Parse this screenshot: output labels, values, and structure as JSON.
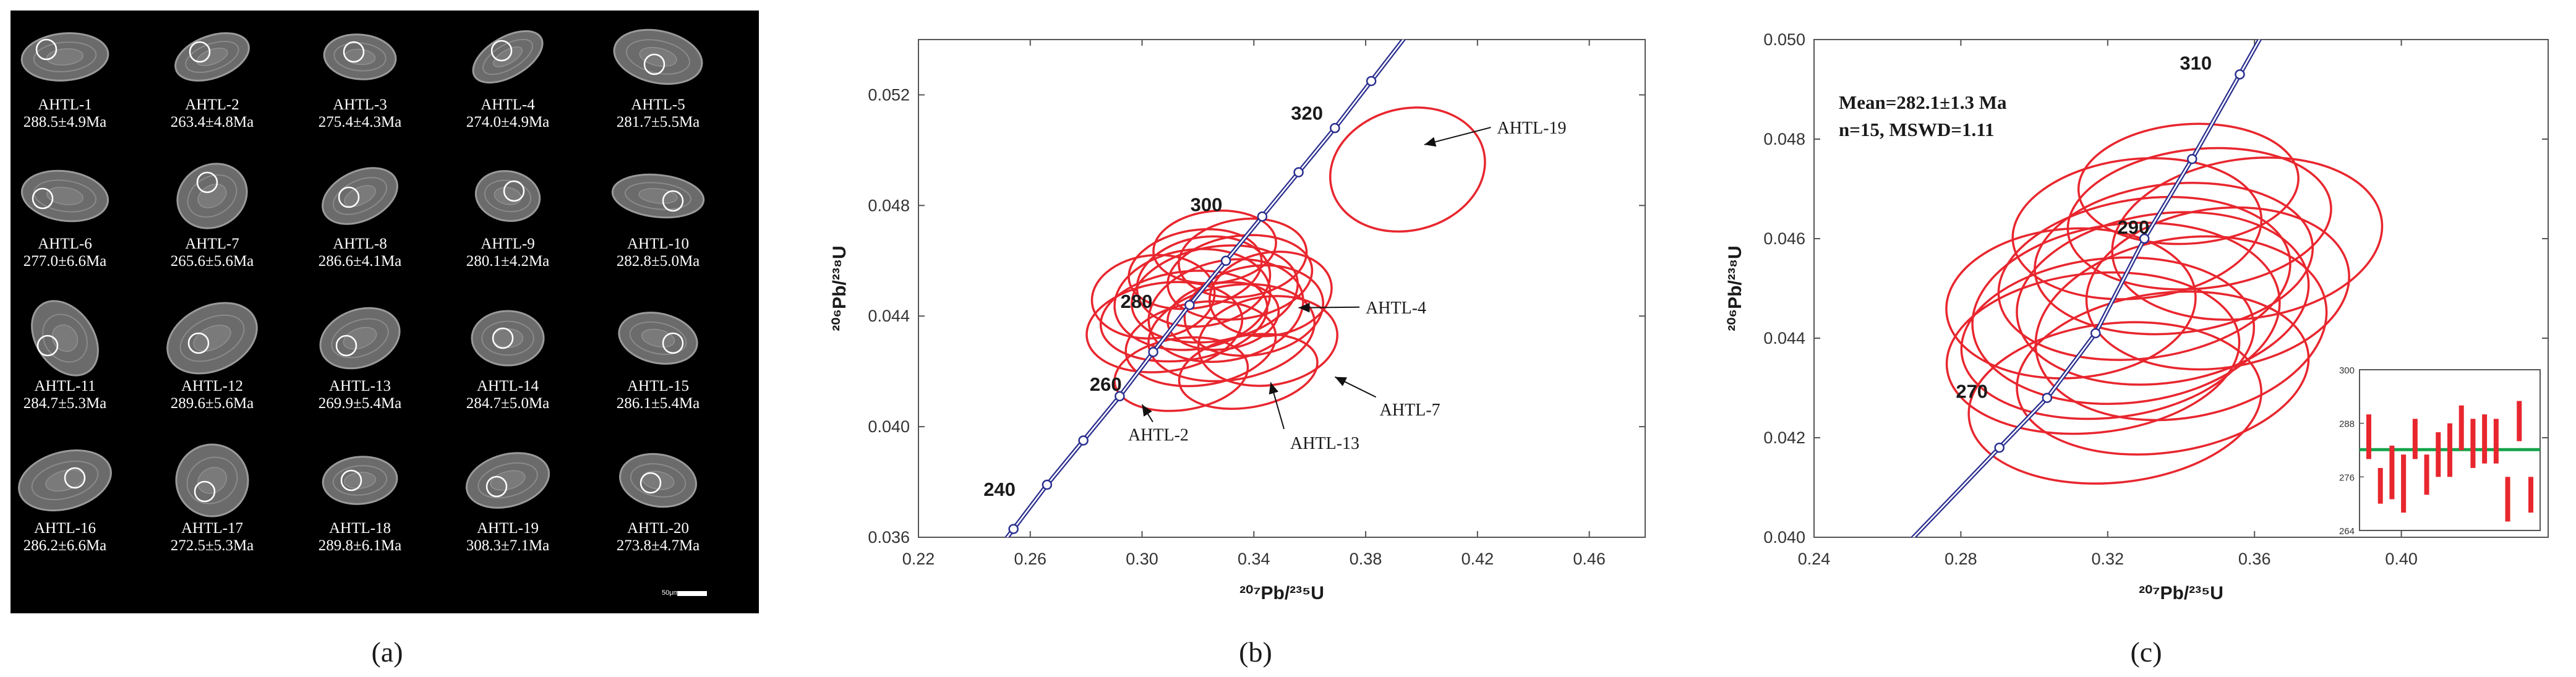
{
  "palette": {
    "ellipse": "#e8262e",
    "concordia": "#2a2f8f",
    "mean_line": "#16a34a",
    "error_bar": "#e8262e",
    "photo_bg": "#000000",
    "text": "#1a1a1a"
  },
  "panel_a": {
    "label": "(a)",
    "scale_bar_label": "50μm",
    "grains": [
      {
        "id": "AHTL-1",
        "age": "288.5±4.9Ma"
      },
      {
        "id": "AHTL-2",
        "age": "263.4±4.8Ma"
      },
      {
        "id": "AHTL-3",
        "age": "275.4±4.3Ma"
      },
      {
        "id": "AHTL-4",
        "age": "274.0±4.9Ma"
      },
      {
        "id": "AHTL-5",
        "age": "281.7±5.5Ma"
      },
      {
        "id": "AHTL-6",
        "age": "277.0±6.6Ma"
      },
      {
        "id": "AHTL-7",
        "age": "265.6±5.6Ma"
      },
      {
        "id": "AHTL-8",
        "age": "286.6±4.1Ma"
      },
      {
        "id": "AHTL-9",
        "age": "280.1±4.2Ma"
      },
      {
        "id": "AHTL-10",
        "age": "282.8±5.0Ma"
      },
      {
        "id": "AHTL-11",
        "age": "284.7±5.3Ma"
      },
      {
        "id": "AHTL-12",
        "age": "289.6±5.6Ma"
      },
      {
        "id": "AHTL-13",
        "age": "269.9±5.4Ma"
      },
      {
        "id": "AHTL-14",
        "age": "284.7±5.0Ma"
      },
      {
        "id": "AHTL-15",
        "age": "286.1±5.4Ma"
      },
      {
        "id": "AHTL-16",
        "age": "286.2±6.6Ma"
      },
      {
        "id": "AHTL-17",
        "age": "272.5±5.3Ma"
      },
      {
        "id": "AHTL-18",
        "age": "289.8±6.1Ma"
      },
      {
        "id": "AHTL-19",
        "age": "308.3±7.1Ma"
      },
      {
        "id": "AHTL-20",
        "age": "273.8±4.7Ma"
      }
    ]
  },
  "chart_data": [
    {
      "type": "scatter",
      "panel": "(b)",
      "xlabel": "²⁰⁷Pb/²³⁵U",
      "ylabel": "²⁰⁶Pb/²³⁸U",
      "xlim": [
        0.22,
        0.48
      ],
      "ylim": [
        0.036,
        0.054
      ],
      "xticks": [
        "0.22",
        "0.26",
        "0.30",
        "0.34",
        "0.38",
        "0.42",
        "0.46"
      ],
      "yticks": [
        "0.036",
        "0.040",
        "0.044",
        "0.048",
        "0.052"
      ],
      "concordia_ages": [
        "240",
        "260",
        "280",
        "300",
        "320"
      ],
      "concordia_points": [
        {
          "x": 0.254,
          "y": 0.0363
        },
        {
          "x": 0.266,
          "y": 0.0379
        },
        {
          "x": 0.279,
          "y": 0.0395
        },
        {
          "x": 0.292,
          "y": 0.0411
        },
        {
          "x": 0.304,
          "y": 0.0427
        },
        {
          "x": 0.317,
          "y": 0.0444
        },
        {
          "x": 0.33,
          "y": 0.046
        },
        {
          "x": 0.343,
          "y": 0.0476
        },
        {
          "x": 0.356,
          "y": 0.0492
        },
        {
          "x": 0.369,
          "y": 0.0508
        },
        {
          "x": 0.382,
          "y": 0.0525
        }
      ],
      "age_labels": [
        {
          "text": "240",
          "x": 0.249,
          "y": 0.0375
        },
        {
          "text": "260",
          "x": 0.287,
          "y": 0.0413
        },
        {
          "text": "280",
          "x": 0.298,
          "y": 0.0443
        },
        {
          "text": "300",
          "x": 0.323,
          "y": 0.0478
        },
        {
          "text": "320",
          "x": 0.359,
          "y": 0.0511
        }
      ],
      "ellipses": [
        {
          "cx": 0.322,
          "cy": 0.04525,
          "rx": 0.024,
          "ry": 0.0016,
          "rot": -10
        },
        {
          "cx": 0.318,
          "cy": 0.0446,
          "rx": 0.028,
          "ry": 0.0018,
          "rot": -8
        },
        {
          "cx": 0.326,
          "cy": 0.0448,
          "rx": 0.03,
          "ry": 0.0017,
          "rot": -10
        },
        {
          "cx": 0.335,
          "cy": 0.0454,
          "rx": 0.026,
          "ry": 0.0015,
          "rot": -8
        },
        {
          "cx": 0.315,
          "cy": 0.044,
          "rx": 0.03,
          "ry": 0.0016,
          "rot": -8
        },
        {
          "cx": 0.33,
          "cy": 0.0442,
          "rx": 0.028,
          "ry": 0.0018,
          "rot": -12
        },
        {
          "cx": 0.34,
          "cy": 0.0442,
          "rx": 0.025,
          "ry": 0.0016,
          "rot": -10
        },
        {
          "cx": 0.308,
          "cy": 0.0436,
          "rx": 0.028,
          "ry": 0.0016,
          "rot": -8
        },
        {
          "cx": 0.321,
          "cy": 0.043,
          "rx": 0.027,
          "ry": 0.0015,
          "rot": -8
        },
        {
          "cx": 0.332,
          "cy": 0.0434,
          "rx": 0.03,
          "ry": 0.0017,
          "rot": -10
        },
        {
          "cx": 0.345,
          "cy": 0.0431,
          "rx": 0.025,
          "ry": 0.0016,
          "rot": -8
        },
        {
          "cx": 0.319,
          "cy": 0.0457,
          "rx": 0.024,
          "ry": 0.0014,
          "rot": -10
        },
        {
          "cx": 0.336,
          "cy": 0.0461,
          "rx": 0.023,
          "ry": 0.0014,
          "rot": -8
        },
        {
          "cx": 0.314,
          "cy": 0.0419,
          "rx": 0.024,
          "ry": 0.0013,
          "rot": -8
        },
        {
          "cx": 0.338,
          "cy": 0.042,
          "rx": 0.025,
          "ry": 0.0013,
          "rot": -10
        },
        {
          "cx": 0.326,
          "cy": 0.0465,
          "rx": 0.022,
          "ry": 0.0013,
          "rot": -6
        },
        {
          "cx": 0.346,
          "cy": 0.0448,
          "rx": 0.022,
          "ry": 0.0015,
          "rot": -10
        },
        {
          "cx": 0.304,
          "cy": 0.0447,
          "rx": 0.022,
          "ry": 0.0015,
          "rot": -6
        },
        {
          "cx": 0.395,
          "cy": 0.0493,
          "rx": 0.028,
          "ry": 0.0022,
          "rot": -14
        },
        {
          "cx": 0.329,
          "cy": 0.044,
          "rx": 0.02,
          "ry": 0.0012,
          "rot": -8
        }
      ],
      "annotations": [
        {
          "text": "AHTL-19",
          "x": 0.427,
          "y": 0.0506,
          "ax": 0.401,
          "ay": 0.0502
        },
        {
          "text": "AHTL-4",
          "x": 0.38,
          "y": 0.0441,
          "ax": 0.356,
          "ay": 0.0443
        },
        {
          "text": "AHTL-7",
          "x": 0.385,
          "y": 0.0404,
          "ax": 0.369,
          "ay": 0.0418
        },
        {
          "text": "AHTL-13",
          "x": 0.353,
          "y": 0.0392,
          "ax": 0.346,
          "ay": 0.0416
        },
        {
          "text": "AHTL-2",
          "x": 0.295,
          "y": 0.0395,
          "ax": 0.3,
          "ay": 0.0408
        }
      ]
    },
    {
      "type": "scatter",
      "panel": "(c)",
      "xlabel": "²⁰⁷Pb/²³⁵U",
      "ylabel": "²⁰⁶Pb/²³⁸U",
      "xlim": [
        0.24,
        0.44
      ],
      "ylim": [
        0.04,
        0.05
      ],
      "xticks": [
        "0.24",
        "0.28",
        "0.32",
        "0.36",
        "0.40"
      ],
      "yticks": [
        "0.040",
        "0.042",
        "0.044",
        "0.046",
        "0.048",
        "0.050"
      ],
      "concordia_ages": [
        "270",
        "290",
        "310"
      ],
      "concordia_points": [
        {
          "x": 0.2905,
          "y": 0.0418
        },
        {
          "x": 0.3035,
          "y": 0.0428
        },
        {
          "x": 0.3167,
          "y": 0.0441
        },
        {
          "x": 0.33,
          "y": 0.046
        },
        {
          "x": 0.343,
          "y": 0.0476
        },
        {
          "x": 0.356,
          "y": 0.0493
        }
      ],
      "age_labels": [
        {
          "text": "270",
          "x": 0.283,
          "y": 0.0428
        },
        {
          "text": "290",
          "x": 0.327,
          "y": 0.0461
        },
        {
          "text": "310",
          "x": 0.344,
          "y": 0.0494
        }
      ],
      "mean_text": "Mean=282.1±1.3 Ma",
      "n_text": "n=15, MSWD=1.11",
      "ellipses": [
        {
          "cx": 0.33,
          "cy": 0.0452,
          "rx": 0.04,
          "ry": 0.0016,
          "rot": -8
        },
        {
          "cx": 0.325,
          "cy": 0.0445,
          "rx": 0.042,
          "ry": 0.0018,
          "rot": -6
        },
        {
          "cx": 0.335,
          "cy": 0.0448,
          "rx": 0.04,
          "ry": 0.0017,
          "rot": -8
        },
        {
          "cx": 0.338,
          "cy": 0.0456,
          "rx": 0.038,
          "ry": 0.0015,
          "rot": -6
        },
        {
          "cx": 0.32,
          "cy": 0.044,
          "rx": 0.04,
          "ry": 0.0016,
          "rot": -6
        },
        {
          "cx": 0.34,
          "cy": 0.0442,
          "rx": 0.04,
          "ry": 0.0018,
          "rot": -10
        },
        {
          "cx": 0.35,
          "cy": 0.045,
          "rx": 0.036,
          "ry": 0.0016,
          "rot": -8
        },
        {
          "cx": 0.316,
          "cy": 0.0437,
          "rx": 0.04,
          "ry": 0.0016,
          "rot": -6
        },
        {
          "cx": 0.328,
          "cy": 0.0462,
          "rx": 0.034,
          "ry": 0.0014,
          "rot": -6
        },
        {
          "cx": 0.345,
          "cy": 0.0464,
          "rx": 0.036,
          "ry": 0.0014,
          "rot": -6
        },
        {
          "cx": 0.335,
          "cy": 0.0433,
          "rx": 0.04,
          "ry": 0.0016,
          "rot": -8
        },
        {
          "cx": 0.358,
          "cy": 0.046,
          "rx": 0.037,
          "ry": 0.0016,
          "rot": -8
        },
        {
          "cx": 0.322,
          "cy": 0.0427,
          "rx": 0.04,
          "ry": 0.0016,
          "rot": -6
        },
        {
          "cx": 0.31,
          "cy": 0.0447,
          "rx": 0.034,
          "ry": 0.0015,
          "rot": -4
        },
        {
          "cx": 0.342,
          "cy": 0.0471,
          "rx": 0.03,
          "ry": 0.0012,
          "rot": -4
        }
      ],
      "inset": {
        "ylim": [
          264,
          300
        ],
        "yticks": [
          "300",
          "288",
          "276",
          "264"
        ],
        "mean": 282.1,
        "bars": [
          {
            "lo": 280,
            "hi": 290
          },
          {
            "lo": 270,
            "hi": 278
          },
          {
            "lo": 271,
            "hi": 283
          },
          {
            "lo": 268,
            "hi": 281
          },
          {
            "lo": 280,
            "hi": 289
          },
          {
            "lo": 272,
            "hi": 281
          },
          {
            "lo": 276,
            "hi": 286
          },
          {
            "lo": 276,
            "hi": 288
          },
          {
            "lo": 282,
            "hi": 292
          },
          {
            "lo": 278,
            "hi": 289
          },
          {
            "lo": 279,
            "hi": 290
          },
          {
            "lo": 279,
            "hi": 289
          },
          {
            "lo": 266,
            "hi": 276
          },
          {
            "lo": 284,
            "hi": 293
          },
          {
            "lo": 268,
            "hi": 276
          }
        ]
      }
    }
  ],
  "panel_b": {
    "label": "(b)"
  },
  "panel_c": {
    "label": "(c)"
  }
}
